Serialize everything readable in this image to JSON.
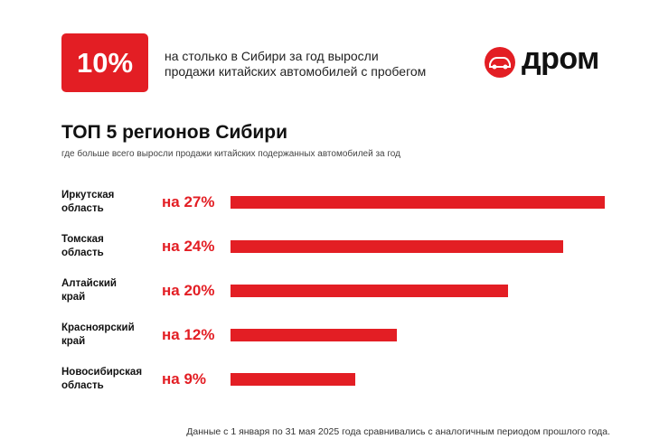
{
  "header": {
    "badge": "10%",
    "lines": [
      "на столько в Сибири за год выросли",
      "продажи китайских автомобилей с пробегом"
    ],
    "logo": "дром"
  },
  "chart_data": {
    "type": "bar",
    "orientation": "horizontal",
    "title": "ТОП 5 регионов Сибири",
    "subtitle": "где больше всего выросли продажи китайских подержанных автомобилей за год",
    "categories": [
      "Иркутская\nобласть",
      "Томская\nобласть",
      "Алтайский\nкрай",
      "Красноярский\nкрай",
      "Новосибирская\nобласть"
    ],
    "values": [
      27,
      24,
      20,
      12,
      9
    ],
    "value_labels": [
      "на 27%",
      "на 24%",
      "на 20%",
      "на 12%",
      "на 9%"
    ],
    "color": "#e31e24"
  },
  "footnote": "Данные с 1 января по 31 мая 2025 года сравнивались с аналогичным периодом прошлого года."
}
